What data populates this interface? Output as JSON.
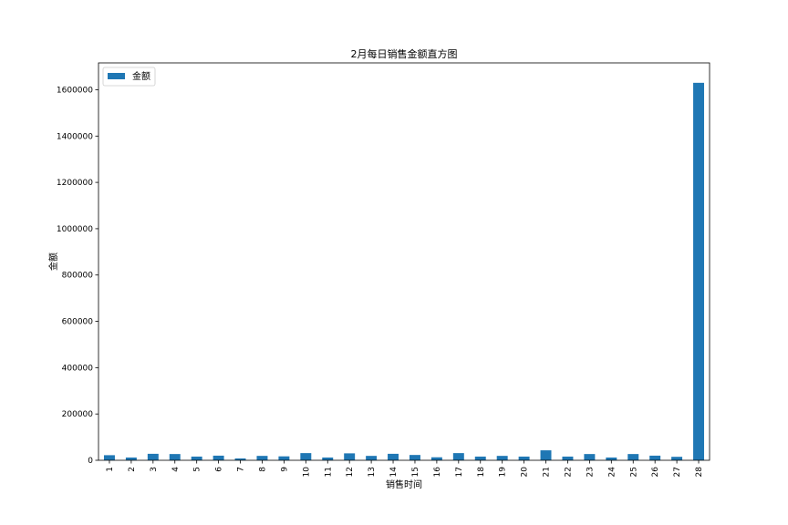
{
  "chart_data": {
    "type": "bar",
    "title": "2月每日销售金额直方图",
    "xlabel": "销售时间",
    "ylabel": "金额",
    "categories": [
      "1",
      "2",
      "3",
      "4",
      "5",
      "6",
      "7",
      "8",
      "9",
      "10",
      "11",
      "12",
      "13",
      "14",
      "15",
      "16",
      "17",
      "18",
      "19",
      "20",
      "21",
      "22",
      "23",
      "24",
      "25",
      "26",
      "27",
      "28"
    ],
    "series": [
      {
        "name": "金额",
        "color": "#1f77b4",
        "values": [
          22000,
          12000,
          28000,
          27000,
          16000,
          20000,
          8000,
          19000,
          17000,
          31000,
          12000,
          30000,
          19000,
          28000,
          23000,
          13000,
          31000,
          16000,
          19000,
          16000,
          43000,
          16000,
          27000,
          12000,
          27000,
          20000,
          15000,
          1630000
        ]
      }
    ],
    "yticks": [
      "0",
      "200000",
      "400000",
      "600000",
      "800000",
      "1000000",
      "1200000",
      "1400000",
      "1600000"
    ],
    "ylim": [
      0,
      1716000
    ],
    "grid": false,
    "legend_position": "upper-left"
  }
}
